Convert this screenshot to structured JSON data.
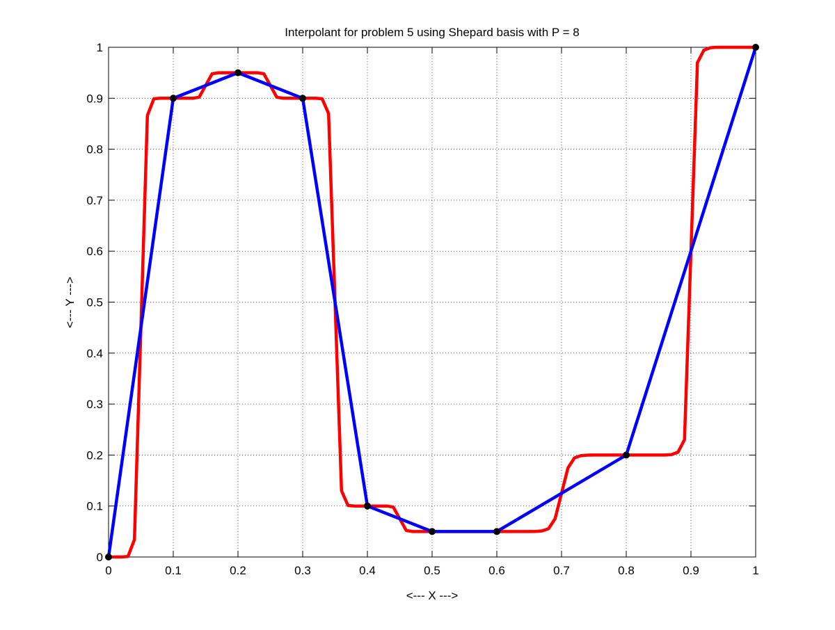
{
  "chart_data": {
    "type": "line",
    "title": "Interpolant for problem 5 using Shepard basis with P = 8",
    "xlabel": "<--- X --->",
    "ylabel": "<--- Y --->",
    "xlim": [
      0,
      1
    ],
    "ylim": [
      0,
      1
    ],
    "xticks": [
      0,
      0.1,
      0.2,
      0.3,
      0.4,
      0.5,
      0.6,
      0.7,
      0.8,
      0.9,
      1
    ],
    "yticks": [
      0,
      0.1,
      0.2,
      0.3,
      0.4,
      0.5,
      0.6,
      0.7,
      0.8,
      0.9,
      1
    ],
    "grid": true,
    "series": [
      {
        "color": "#ff0000",
        "markers": false,
        "x": [
          0,
          0.01,
          0.02,
          0.03,
          0.04,
          0.05,
          0.06,
          0.07,
          0.08,
          0.09,
          0.1,
          0.11,
          0.12,
          0.13,
          0.14,
          0.15,
          0.16,
          0.17,
          0.18,
          0.19,
          0.2,
          0.21,
          0.22,
          0.23,
          0.24,
          0.25,
          0.26,
          0.27,
          0.28,
          0.29,
          0.3,
          0.31,
          0.32,
          0.33,
          0.34,
          0.35,
          0.36,
          0.37,
          0.38,
          0.39,
          0.4,
          0.41,
          0.42,
          0.43,
          0.44,
          0.45,
          0.46,
          0.47,
          0.48,
          0.49,
          0.5,
          0.51,
          0.52,
          0.53,
          0.54,
          0.55,
          0.56,
          0.57,
          0.58,
          0.59,
          0.6,
          0.61,
          0.62,
          0.63,
          0.64,
          0.65,
          0.66,
          0.67,
          0.68,
          0.69,
          0.7,
          0.71,
          0.72,
          0.73,
          0.74,
          0.75,
          0.76,
          0.77,
          0.78,
          0.79,
          0.8,
          0.81,
          0.82,
          0.83,
          0.84,
          0.85,
          0.86,
          0.87,
          0.88,
          0.89,
          0.9,
          0.91,
          0.92,
          0.93,
          0.94,
          0.95,
          0.96,
          0.97,
          0.98,
          0.99,
          1
        ],
        "values": [
          0,
          0,
          0,
          0.001,
          0.034,
          0.45,
          0.866,
          0.899,
          0.9,
          0.9,
          0.9,
          0.9,
          0.9,
          0.9,
          0.902,
          0.925,
          0.948,
          0.95,
          0.95,
          0.95,
          0.95,
          0.95,
          0.95,
          0.95,
          0.948,
          0.925,
          0.902,
          0.9,
          0.9,
          0.9,
          0.9,
          0.9,
          0.9,
          0.899,
          0.87,
          0.5,
          0.13,
          0.101,
          0.1,
          0.1,
          0.1,
          0.1,
          0.1,
          0.1,
          0.098,
          0.075,
          0.052,
          0.05,
          0.05,
          0.05,
          0.05,
          0.05,
          0.05,
          0.05,
          0.05,
          0.05,
          0.05,
          0.05,
          0.05,
          0.05,
          0.05,
          0.05,
          0.05,
          0.05,
          0.05,
          0.05,
          0.0502,
          0.0511,
          0.0556,
          0.075,
          0.125,
          0.175,
          0.1944,
          0.1989,
          0.1998,
          0.2,
          0.2,
          0.2,
          0.2,
          0.2,
          0.2,
          0.2,
          0.2,
          0.2,
          0.2,
          0.2,
          0.2,
          0.2009,
          0.2056,
          0.2301,
          0.6,
          0.9699,
          0.9944,
          0.9991,
          1,
          1,
          1,
          1,
          1,
          1,
          1
        ]
      },
      {
        "color": "#0000ff",
        "markers": true,
        "marker_color": "#000000",
        "x": [
          0,
          0.1,
          0.2,
          0.3,
          0.4,
          0.5,
          0.6,
          0.8,
          1
        ],
        "values": [
          0,
          0.9,
          0.95,
          0.9,
          0.1,
          0.05,
          0.05,
          0.2,
          1
        ]
      }
    ]
  }
}
